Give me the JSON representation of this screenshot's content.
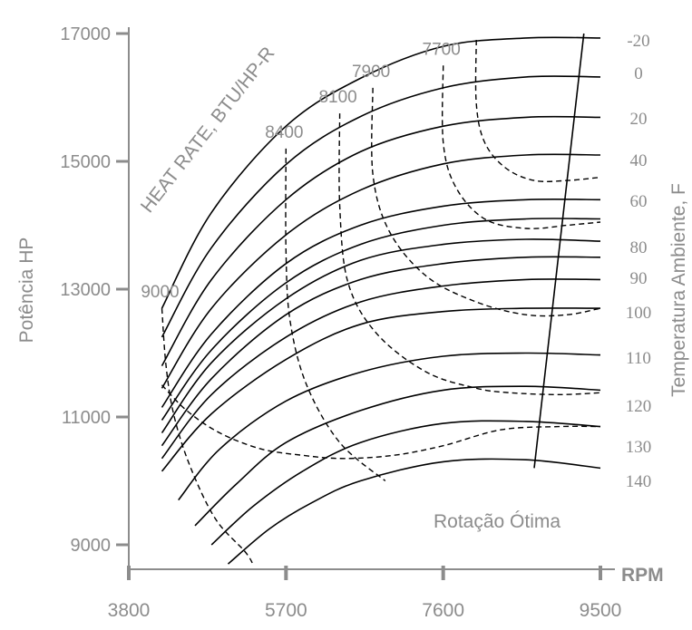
{
  "chart_data": {
    "type": "line",
    "title": "",
    "ylabel": "Potência  HP",
    "xlabel": "RPM",
    "right_axis_label": "Temperatura Ambiente, F",
    "heat_rate_title": "HEAT RATE, BTU/HP-R",
    "optimal_speed_label": "Rotação Ótima",
    "xlim": [
      3800,
      9500
    ],
    "ylim": [
      8600,
      17300
    ],
    "x_ticks": [
      "3800",
      "5700",
      "7600",
      "9500"
    ],
    "y_ticks": [
      "9000",
      "11000",
      "13000",
      "15000",
      "17000"
    ],
    "x_tick_values": [
      3800,
      5700,
      7600,
      9500
    ],
    "y_tick_values": [
      9000,
      11000,
      13000,
      15000,
      17000
    ],
    "temperature_labels": [
      "-20",
      "0",
      "20",
      "40",
      "60",
      "80",
      "90",
      "100",
      "110",
      "120",
      "130",
      "140"
    ],
    "series": [
      {
        "name": "-20",
        "x": [
          4200,
          4800,
          5700,
          6600,
          7600,
          8600,
          9500
        ],
        "y": [
          12700,
          14200,
          15550,
          16300,
          16800,
          16930,
          16930
        ]
      },
      {
        "name": "0",
        "x": [
          4200,
          4800,
          5700,
          6600,
          7600,
          8600,
          9500
        ],
        "y": [
          12250,
          13650,
          14950,
          15700,
          16150,
          16320,
          16320
        ]
      },
      {
        "name": "20",
        "x": [
          4200,
          4800,
          5700,
          6600,
          7600,
          8600,
          9500
        ],
        "y": [
          11800,
          13150,
          14400,
          15150,
          15550,
          15690,
          15690
        ]
      },
      {
        "name": "40",
        "x": [
          4200,
          4800,
          5700,
          6600,
          7600,
          8600,
          9500
        ],
        "y": [
          11450,
          12700,
          13850,
          14550,
          14960,
          15100,
          15100
        ]
      },
      {
        "name": "60",
        "x": [
          4200,
          4800,
          5700,
          6600,
          7600,
          8600,
          9500
        ],
        "y": [
          11150,
          12300,
          13400,
          14000,
          14300,
          14400,
          14400
        ]
      },
      {
        "name": "80",
        "x": [
          4200,
          4800,
          5700,
          6600,
          7600,
          8600,
          9500
        ],
        "y": [
          10950,
          12050,
          13100,
          13700,
          14000,
          14100,
          14100
        ]
      },
      {
        "name": "90",
        "x": [
          4200,
          4800,
          5700,
          6600,
          7600,
          8600,
          9500
        ],
        "y": [
          10750,
          11850,
          12850,
          13450,
          13700,
          13780,
          13750
        ]
      },
      {
        "name": "100",
        "x": [
          4200,
          4800,
          5700,
          6600,
          7600,
          8600,
          9500
        ],
        "y": [
          10550,
          11600,
          12600,
          13150,
          13400,
          13500,
          13500
        ]
      },
      {
        "name": "110",
        "x": [
          4200,
          4800,
          5700,
          6600,
          7600,
          8600,
          9500
        ],
        "y": [
          10350,
          11350,
          12250,
          12800,
          13050,
          13150,
          13150
        ]
      },
      {
        "name": "120",
        "x": [
          4200,
          4800,
          5700,
          6600,
          7600,
          8600,
          9500
        ],
        "y": [
          10150,
          11050,
          11900,
          12450,
          12650,
          12700,
          12700
        ]
      },
      {
        "name": "130",
        "x": [
          4400,
          4900,
          5700,
          6600,
          7600,
          8600,
          9500
        ],
        "y": [
          9700,
          10500,
          11250,
          11700,
          11950,
          12000,
          11970
        ]
      },
      {
        "name": "140",
        "x": [
          4600,
          5100,
          5700,
          6600,
          7600,
          8600,
          9500
        ],
        "y": [
          9300,
          9950,
          10600,
          11100,
          11420,
          11480,
          11420
        ]
      },
      {
        "name": "",
        "x": [
          4800,
          5300,
          5900,
          6600,
          7600,
          8600,
          9500
        ],
        "y": [
          9000,
          9600,
          10150,
          10600,
          10900,
          10930,
          10850
        ]
      },
      {
        "name": "",
        "x": [
          5000,
          5500,
          6000,
          6600,
          7600,
          8600,
          9500
        ],
        "y": [
          8700,
          9250,
          9650,
          10000,
          10300,
          10330,
          10200
        ]
      }
    ],
    "heat_rate_curves": [
      {
        "label": "9000",
        "x": [
          4200,
          4250,
          4350,
          4550,
          4850,
          5200,
          5300
        ],
        "y": [
          12700,
          11800,
          11000,
          10200,
          9400,
          8900,
          8700
        ]
      },
      {
        "label": "8400",
        "x": [
          5700,
          5700,
          5750,
          5950,
          6350,
          6900
        ],
        "y": [
          15200,
          13600,
          12500,
          11500,
          10600,
          10000
        ]
      },
      {
        "label": "8100",
        "x": [
          6350,
          6350,
          6450,
          6800,
          7400,
          8000,
          8400,
          9000,
          9500
        ],
        "y": [
          15750,
          14300,
          13100,
          12300,
          11700,
          11450,
          11380,
          11350,
          11380
        ]
      },
      {
        "label": "7900",
        "x": [
          6750,
          6750,
          6950,
          7400,
          8000,
          8600,
          9100,
          9500
        ],
        "y": [
          16150,
          14800,
          13900,
          13200,
          12800,
          12600,
          12600,
          12700
        ]
      },
      {
        "label": "7700",
        "x": [
          7600,
          7600,
          7750,
          8100,
          8600,
          9100,
          9500
        ],
        "y": [
          16500,
          15300,
          14600,
          14100,
          13950,
          14000,
          14050
        ]
      },
      {
        "label": "",
        "x": [
          8000,
          8000,
          8100,
          8350,
          8700,
          9100,
          9500
        ],
        "y": [
          16900,
          15900,
          15300,
          14900,
          14700,
          14700,
          14750
        ]
      },
      {
        "label": "",
        "x": [
          4200,
          4500,
          4900,
          5400,
          5900,
          6400,
          7000,
          7600,
          8300,
          9000,
          9500
        ],
        "y": [
          11500,
          11100,
          10750,
          10500,
          10400,
          10350,
          10400,
          10550,
          10800,
          10850,
          10850
        ]
      }
    ],
    "optimal_speed_line": {
      "x": [
        8700,
        9300
      ],
      "y": [
        10200,
        17000
      ]
    },
    "grid": false,
    "legend": "none"
  }
}
